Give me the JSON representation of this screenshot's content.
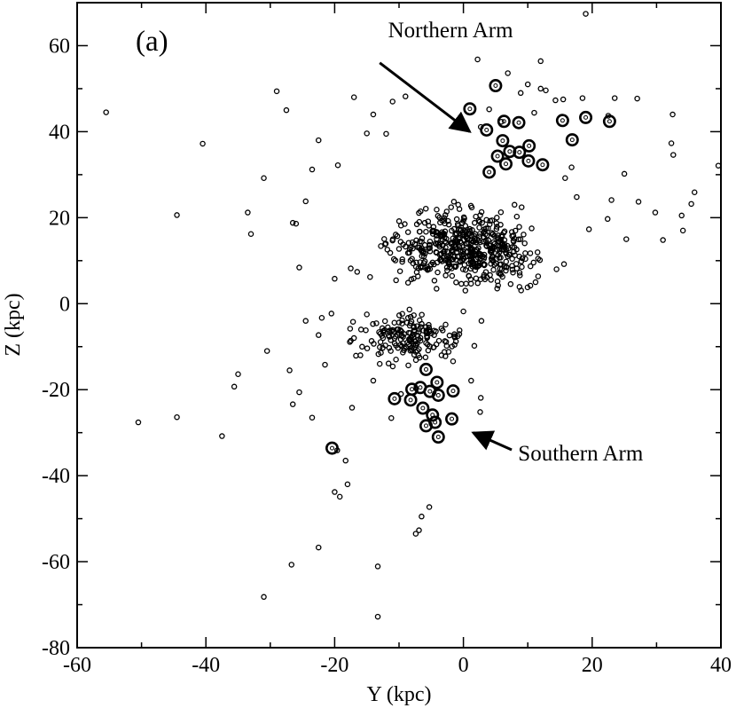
{
  "chart_data": {
    "type": "scatter",
    "panel_label": "(a)",
    "xlabel": "Y (kpc)",
    "ylabel": "Z (kpc)",
    "xlim": [
      -60,
      40
    ],
    "ylim": [
      -80,
      70
    ],
    "xticks": [
      -60,
      -40,
      -20,
      0,
      20,
      40
    ],
    "yticks": [
      -80,
      -60,
      -40,
      -20,
      0,
      20,
      40,
      60
    ],
    "grid": false,
    "annotations": [
      {
        "label": "Northern Arm",
        "text_x": -2,
        "text_y": 62,
        "arrow_from": [
          -13,
          56
        ],
        "arrow_to": [
          1,
          40
        ]
      },
      {
        "label": "Southern Arm",
        "text_x": 8.5,
        "text_y": -36.5,
        "arrow_from": [
          7.5,
          -34
        ],
        "arrow_to": [
          1.5,
          -30
        ]
      }
    ],
    "series": [
      {
        "marker": "small-circle",
        "points": [
          [
            -55.5,
            44.5
          ],
          [
            -40.5,
            37.2
          ],
          [
            -44.5,
            20.6
          ],
          [
            -31,
            29.2
          ],
          [
            -33,
            16.2
          ],
          [
            -33.5,
            21.2
          ],
          [
            -29,
            49.4
          ],
          [
            -27.5,
            45
          ],
          [
            -26.5,
            18.8
          ],
          [
            -26,
            18.6
          ],
          [
            -22.5,
            38
          ],
          [
            -23.5,
            31.2
          ],
          [
            -19.5,
            32.2
          ],
          [
            -17,
            48
          ],
          [
            -15,
            39.6
          ],
          [
            -14,
            44
          ],
          [
            -12,
            39.5
          ],
          [
            -11,
            47
          ],
          [
            -9,
            48.2
          ],
          [
            -25.5,
            8.4
          ],
          [
            -24.5,
            23.8
          ],
          [
            -17.5,
            8.2
          ],
          [
            -16.5,
            7.4
          ],
          [
            -14.5,
            6.2
          ],
          [
            -20,
            5.8
          ],
          [
            -50.5,
            -27.6
          ],
          [
            -44.5,
            -26.4
          ],
          [
            -37.5,
            -30.8
          ],
          [
            -35,
            -16.4
          ],
          [
            -35.6,
            -19.3
          ],
          [
            -30.5,
            -11
          ],
          [
            -27,
            -15.5
          ],
          [
            -26.5,
            -23.4
          ],
          [
            -25.5,
            -20.6
          ],
          [
            -24.5,
            -4
          ],
          [
            -23.5,
            -26.5
          ],
          [
            -22.5,
            -7.3
          ],
          [
            -22,
            -3.3
          ],
          [
            -21.5,
            -14.2
          ],
          [
            -20.5,
            -2.3
          ],
          [
            -19.6,
            -34.1
          ],
          [
            -20,
            -43.8
          ],
          [
            -19.2,
            -44.9
          ],
          [
            -18,
            -42
          ],
          [
            -18.3,
            -36.5
          ],
          [
            -17.3,
            -24.2
          ],
          [
            -17,
            -8
          ],
          [
            -16,
            -12
          ],
          [
            -15,
            -2.5
          ],
          [
            -14,
            -17.9
          ],
          [
            -13,
            -14
          ],
          [
            -12.6,
            -5.7
          ],
          [
            -11.2,
            -26.6
          ],
          [
            -10.7,
            -8.1
          ],
          [
            -9.7,
            -21
          ],
          [
            -8.3,
            -8.7
          ],
          [
            -7.7,
            -2.7
          ],
          [
            -7,
            -12
          ],
          [
            -6.5,
            -49.5
          ],
          [
            -6.9,
            -52.7
          ],
          [
            -7.4,
            -53.5
          ],
          [
            -5.3,
            -47.3
          ],
          [
            -3.4,
            -12
          ],
          [
            -2.6,
            -9.8
          ],
          [
            -1.4,
            -7.1
          ],
          [
            -0.6,
            -6.2
          ],
          [
            1.2,
            -17.9
          ],
          [
            2.7,
            -21.9
          ],
          [
            2.6,
            -25.2
          ],
          [
            2.8,
            -4
          ],
          [
            1.7,
            -9.8
          ],
          [
            0,
            -1.8
          ],
          [
            -22.5,
            -56.7
          ],
          [
            -26.7,
            -60.7
          ],
          [
            -13.3,
            -61.1
          ],
          [
            -31,
            -68.2
          ],
          [
            -13.3,
            -72.8
          ],
          [
            19,
            67.4
          ],
          [
            2.2,
            56.8
          ],
          [
            12,
            56.4
          ],
          [
            10,
            51
          ],
          [
            12.8,
            49.6
          ],
          [
            15.5,
            47.5
          ],
          [
            18.5,
            47.8
          ],
          [
            23.5,
            47.8
          ],
          [
            27,
            47.7
          ],
          [
            32.5,
            44
          ],
          [
            32.3,
            37.3
          ],
          [
            32.6,
            34.6
          ],
          [
            35.9,
            25.9
          ],
          [
            33.9,
            20.5
          ],
          [
            34.1,
            17
          ],
          [
            35.4,
            23.2
          ],
          [
            31,
            14.8
          ],
          [
            29.8,
            21.2
          ],
          [
            27.2,
            23.7
          ],
          [
            25.3,
            15
          ],
          [
            25,
            30.2
          ],
          [
            23,
            24.1
          ],
          [
            22.4,
            19.7
          ],
          [
            19.5,
            17.3
          ],
          [
            17.6,
            24.8
          ],
          [
            16.8,
            31.7
          ],
          [
            15.8,
            29.2
          ],
          [
            14.3,
            47.3
          ],
          [
            11,
            44.4
          ],
          [
            8.9,
            49
          ],
          [
            6.9,
            53.6
          ],
          [
            5.9,
            42.3
          ],
          [
            4,
            45.2
          ],
          [
            2.7,
            41.1
          ],
          [
            39.6,
            32.1
          ],
          [
            22.5,
            43.7
          ],
          [
            12,
            50
          ]
        ]
      },
      {
        "marker": "large-ring",
        "points": [
          [
            1,
            45.3
          ],
          [
            5,
            50.7
          ],
          [
            3.6,
            40.4
          ],
          [
            6.3,
            42.4
          ],
          [
            8.6,
            42.1
          ],
          [
            15.4,
            42.6
          ],
          [
            19,
            43.3
          ],
          [
            22.7,
            42.4
          ],
          [
            16.9,
            38.1
          ],
          [
            6.1,
            37.9
          ],
          [
            7.2,
            35.4
          ],
          [
            8.7,
            35.2
          ],
          [
            10.2,
            36.7
          ],
          [
            10.1,
            33.2
          ],
          [
            12.3,
            32.3
          ],
          [
            6.6,
            32.5
          ],
          [
            5.3,
            34.3
          ],
          [
            4,
            30.6
          ],
          [
            -5.8,
            -15.3
          ],
          [
            -4.1,
            -18.3
          ],
          [
            -1.6,
            -20.3
          ],
          [
            -3.9,
            -21.3
          ],
          [
            -5.2,
            -20.4
          ],
          [
            -6.7,
            -19.5
          ],
          [
            -8.2,
            -22.4
          ],
          [
            -10.7,
            -22.1
          ],
          [
            -8,
            -19.9
          ],
          [
            -6.3,
            -24.3
          ],
          [
            -4.8,
            -25.9
          ],
          [
            -4.4,
            -27.6
          ],
          [
            -5.8,
            -28.4
          ],
          [
            -1.8,
            -26.8
          ],
          [
            -3.9,
            -31
          ],
          [
            -20.4,
            -33.6
          ]
        ]
      }
    ]
  }
}
